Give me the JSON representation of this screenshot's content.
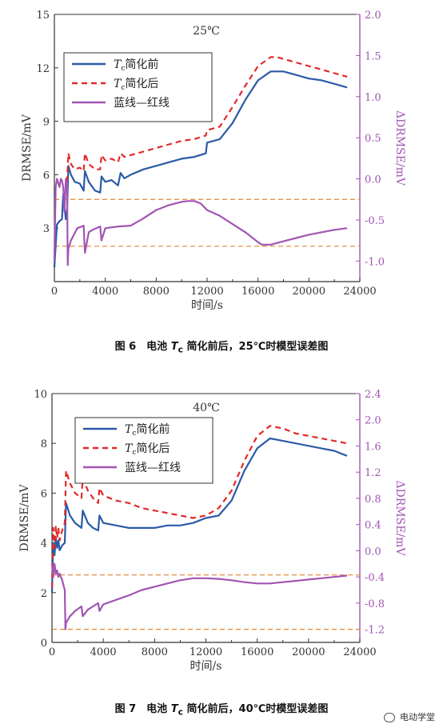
{
  "colors": {
    "blue": "#2b5aa6",
    "red": "#e02a2a",
    "purple": "#a255b3",
    "orange": "#e3862f",
    "axis": "#333333"
  },
  "watermark": {
    "icon": "wechat-icon",
    "text": "电动学堂"
  },
  "chart_data": [
    {
      "type": "line",
      "title": "25℃",
      "caption_prefix": "图 6　电池",
      "caption_suffix": "简化前后，25℃时模型误差图",
      "caption_symbol": "T",
      "caption_sub": "c",
      "xlabel": "时间/s",
      "ylabel_left": "DRMSE/mV",
      "ylabel_right": "ΔDRMSE/mV",
      "xlim": [
        0,
        24000
      ],
      "ylim_left": [
        0,
        15
      ],
      "ylim_right": [
        -1.25,
        2.0
      ],
      "xticks": [
        "0",
        "4000",
        "8000",
        "12000",
        "16000",
        "20000",
        "24000"
      ],
      "yticks_left": [
        "3",
        "6",
        "9",
        "12",
        "15"
      ],
      "yticks_right": [
        "-1.0",
        "-0.5",
        "0.0",
        "0.5",
        "1.0",
        "1.5",
        "2.0"
      ],
      "legend": [
        {
          "symbol": "T",
          "sub": "c",
          "text": "简化前",
          "style": "solid",
          "color": "blue"
        },
        {
          "symbol": "T",
          "sub": "c",
          "text": "简化后",
          "style": "dashed",
          "color": "red"
        },
        {
          "symbol": "",
          "sub": "",
          "text": "蓝线—红线",
          "style": "solid",
          "color": "purple"
        }
      ],
      "hlines_right": [
        -0.25,
        -0.82
      ],
      "series": [
        {
          "key": "before",
          "axis": "left",
          "color": "blue",
          "dash": false,
          "x": [
            0,
            200,
            400,
            600,
            700,
            900,
            1000,
            1100,
            1300,
            1600,
            2000,
            2300,
            2400,
            2700,
            3200,
            3600,
            3700,
            4000,
            4500,
            5000,
            5200,
            5500,
            6000,
            7000,
            8000,
            9000,
            10000,
            11000,
            11900,
            12000,
            13000,
            14000,
            15000,
            16000,
            17000,
            18000,
            19000,
            20000,
            21000,
            22000,
            23000
          ],
          "y": [
            0.8,
            3.2,
            3.4,
            3.5,
            4.9,
            3.5,
            4.0,
            6.5,
            6.0,
            5.6,
            5.5,
            5.1,
            6.2,
            5.6,
            5.1,
            5.0,
            5.9,
            5.6,
            5.7,
            5.4,
            6.1,
            5.8,
            6.0,
            6.3,
            6.5,
            6.7,
            6.9,
            7.0,
            7.2,
            7.8,
            8.0,
            8.9,
            10.2,
            11.3,
            11.8,
            11.8,
            11.6,
            11.4,
            11.3,
            11.1,
            10.9
          ]
        },
        {
          "key": "after",
          "axis": "left",
          "color": "red",
          "dash": true,
          "x": [
            1000,
            1100,
            1300,
            1600,
            2000,
            2300,
            2400,
            2700,
            3200,
            3600,
            3700,
            4000,
            4500,
            5000,
            5200,
            5500,
            6000,
            7000,
            8000,
            9000,
            10000,
            11000,
            11900,
            12000,
            13000,
            14000,
            15000,
            16000,
            17000,
            17500,
            18000,
            19000,
            20000,
            21000,
            22000,
            23000
          ],
          "y": [
            5.6,
            7.2,
            6.6,
            6.3,
            6.4,
            6.2,
            7.2,
            6.6,
            6.3,
            6.3,
            7.1,
            6.8,
            6.9,
            6.7,
            7.2,
            7.0,
            7.1,
            7.3,
            7.5,
            7.7,
            7.9,
            8.0,
            8.2,
            8.5,
            8.7,
            9.8,
            11.0,
            12.1,
            12.6,
            12.6,
            12.5,
            12.3,
            12.1,
            11.9,
            11.7,
            11.5
          ]
        },
        {
          "key": "diff",
          "axis": "right",
          "color": "purple",
          "dash": false,
          "x": [
            0,
            100,
            200,
            300,
            400,
            500,
            600,
            700,
            800,
            900,
            1000,
            1050,
            1100,
            1300,
            1800,
            2300,
            2400,
            2700,
            3000,
            3600,
            3700,
            4000,
            5000,
            6000,
            7000,
            8000,
            9000,
            10000,
            10500,
            11000,
            11500,
            12000,
            13000,
            14000,
            15000,
            16000,
            16300,
            17000,
            18000,
            19000,
            20000,
            21000,
            22000,
            23000
          ],
          "y": [
            -1.0,
            -0.1,
            0.0,
            -0.05,
            -0.1,
            0.0,
            -0.02,
            -0.1,
            -0.4,
            0.0,
            -0.05,
            -1.05,
            -0.85,
            -0.75,
            -0.6,
            -0.57,
            -0.9,
            -0.65,
            -0.62,
            -0.58,
            -0.75,
            -0.6,
            -0.58,
            -0.57,
            -0.48,
            -0.38,
            -0.32,
            -0.28,
            -0.27,
            -0.27,
            -0.3,
            -0.38,
            -0.45,
            -0.55,
            -0.65,
            -0.77,
            -0.8,
            -0.8,
            -0.76,
            -0.72,
            -0.68,
            -0.65,
            -0.62,
            -0.6
          ]
        }
      ]
    },
    {
      "type": "line",
      "title": "40℃",
      "caption_prefix": "图 7　电池",
      "caption_suffix": "简化前后，40℃时模型误差图",
      "caption_symbol": "T",
      "caption_sub": "c",
      "xlabel": "时间/s",
      "ylabel_left": "DRMSE/mV",
      "ylabel_right": "ΔDRMSE/mV",
      "xlim": [
        0,
        24000
      ],
      "ylim_left": [
        0,
        10
      ],
      "ylim_right": [
        -1.4,
        2.4
      ],
      "xticks": [
        "0",
        "4000",
        "8000",
        "12000",
        "16000",
        "20000",
        "24000"
      ],
      "yticks_left": [
        "0",
        "2",
        "4",
        "6",
        "8",
        "10"
      ],
      "yticks_right": [
        "-1.2",
        "-0.8",
        "-0.4",
        "0.0",
        "0.4",
        "0.8",
        "1.2",
        "1.6",
        "2.0",
        "2.4"
      ],
      "legend": [
        {
          "symbol": "T",
          "sub": "c",
          "text": "简化前",
          "style": "solid",
          "color": "blue"
        },
        {
          "symbol": "T",
          "sub": "c",
          "text": "简化后",
          "style": "dashed",
          "color": "red"
        },
        {
          "symbol": "",
          "sub": "",
          "text": "蓝线—红线",
          "style": "solid",
          "color": "purple"
        }
      ],
      "hlines_right": [
        -0.37,
        -1.2
      ],
      "series": [
        {
          "key": "before",
          "axis": "left",
          "color": "blue",
          "dash": false,
          "x": [
            0,
            100,
            200,
            300,
            400,
            500,
            600,
            800,
            1000,
            1100,
            1400,
            1800,
            2300,
            2400,
            2800,
            3200,
            3600,
            3700,
            4000,
            5000,
            6000,
            7000,
            8000,
            9000,
            10000,
            11000,
            12000,
            13000,
            14000,
            15000,
            16000,
            17000,
            18000,
            19000,
            20000,
            21000,
            22000,
            23000
          ],
          "y": [
            2.0,
            4.0,
            3.5,
            4.2,
            3.8,
            4.1,
            3.7,
            3.9,
            4.0,
            5.6,
            5.1,
            4.8,
            4.6,
            5.3,
            4.8,
            4.6,
            4.5,
            5.1,
            4.8,
            4.7,
            4.6,
            4.6,
            4.6,
            4.7,
            4.7,
            4.8,
            5.0,
            5.1,
            5.7,
            6.9,
            7.8,
            8.2,
            8.1,
            8.0,
            7.9,
            7.8,
            7.7,
            7.5
          ]
        },
        {
          "key": "after",
          "axis": "left",
          "color": "red",
          "dash": true,
          "x": [
            0,
            100,
            200,
            300,
            400,
            500,
            600,
            800,
            1000,
            1100,
            1400,
            1800,
            2300,
            2400,
            2800,
            3200,
            3600,
            3700,
            4000,
            5000,
            6000,
            7000,
            8000,
            9000,
            10000,
            11000,
            12000,
            13000,
            14000,
            15000,
            16000,
            17000,
            18000,
            19000,
            20000,
            21000,
            22000,
            23000
          ],
          "y": [
            2.2,
            4.6,
            3.8,
            4.7,
            4.2,
            4.6,
            4.1,
            4.5,
            4.8,
            6.9,
            6.4,
            6.0,
            5.8,
            6.6,
            6.1,
            5.8,
            5.6,
            6.2,
            5.9,
            5.7,
            5.6,
            5.4,
            5.3,
            5.2,
            5.1,
            5.0,
            5.1,
            5.4,
            6.1,
            7.3,
            8.3,
            8.7,
            8.6,
            8.4,
            8.3,
            8.2,
            8.1,
            8.0
          ]
        },
        {
          "key": "diff",
          "axis": "right",
          "color": "purple",
          "dash": false,
          "x": [
            0,
            100,
            200,
            300,
            400,
            500,
            600,
            800,
            1000,
            1050,
            1100,
            1400,
            1800,
            2300,
            2400,
            2800,
            3200,
            3600,
            3700,
            4000,
            5000,
            6000,
            7000,
            8000,
            9000,
            10000,
            11000,
            12000,
            13000,
            14000,
            15000,
            16000,
            17000,
            18000,
            19000,
            20000,
            21000,
            22000,
            23000
          ],
          "y": [
            -0.2,
            -0.4,
            -0.2,
            -0.35,
            -0.3,
            -0.4,
            -0.35,
            -0.45,
            -0.6,
            -1.2,
            -1.1,
            -1.0,
            -0.92,
            -0.85,
            -1.0,
            -0.9,
            -0.85,
            -0.8,
            -0.92,
            -0.82,
            -0.75,
            -0.68,
            -0.6,
            -0.55,
            -0.5,
            -0.45,
            -0.42,
            -0.42,
            -0.43,
            -0.45,
            -0.48,
            -0.5,
            -0.5,
            -0.48,
            -0.46,
            -0.44,
            -0.42,
            -0.4,
            -0.38
          ]
        }
      ]
    }
  ]
}
